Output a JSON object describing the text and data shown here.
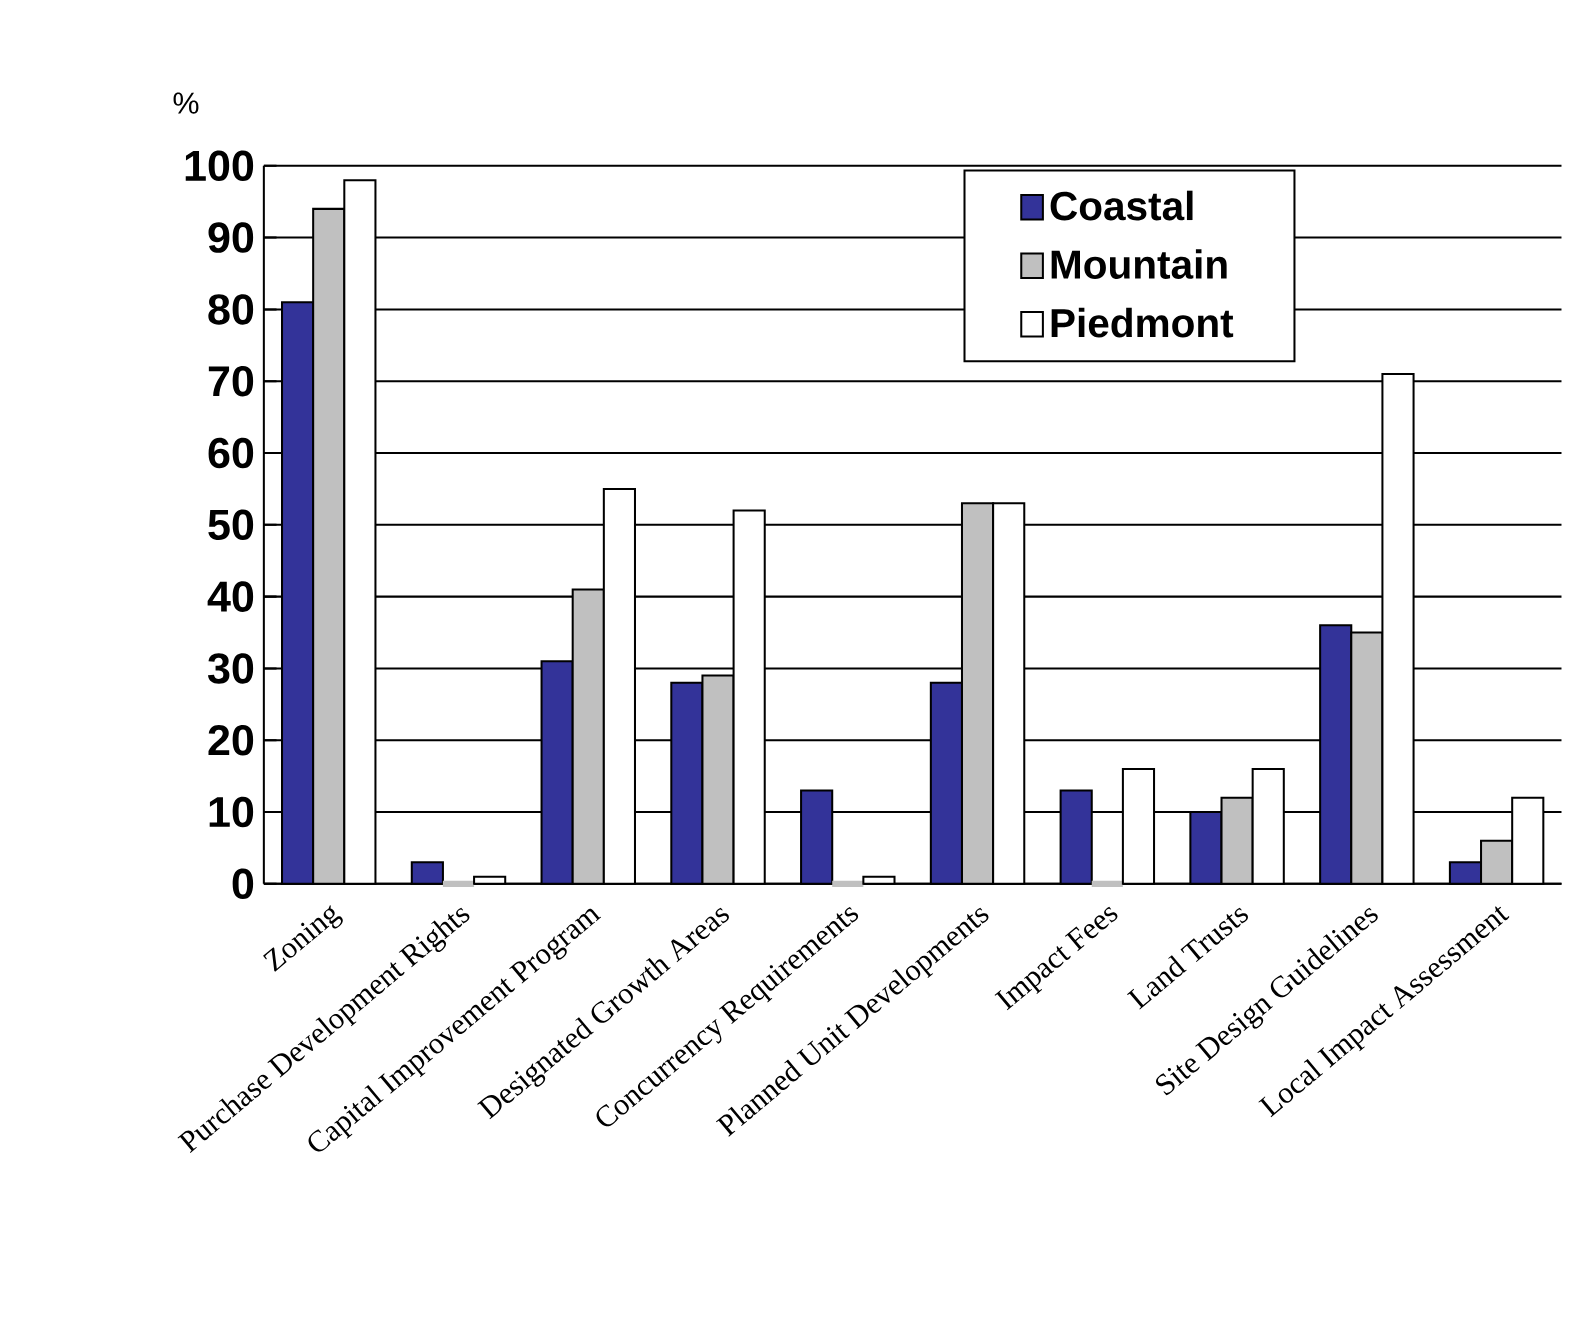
{
  "chart_data": {
    "type": "bar",
    "ylabel": "%",
    "categories": [
      "Zoning",
      "Purchase Development Rights",
      "Capital Improvement Program",
      "Designated Growth Areas",
      "Concurrency Requirements",
      "Planned Unit Developments",
      "Impact Fees",
      "Land Trusts",
      "Site Design Guidelines",
      "Local Impact Assessment"
    ],
    "series": [
      {
        "name": "Coastal",
        "color": "#333399",
        "values": [
          81,
          3,
          31,
          28,
          13,
          28,
          13,
          10,
          36,
          3
        ]
      },
      {
        "name": "Mountain",
        "color": "#c0c0c0",
        "values": [
          94,
          0,
          41,
          29,
          0,
          53,
          0,
          12,
          35,
          6
        ]
      },
      {
        "name": "Piedmont",
        "color": "#ffffff",
        "values": [
          98,
          1,
          55,
          52,
          1,
          53,
          16,
          16,
          71,
          12
        ]
      }
    ],
    "ylim": [
      0,
      100
    ],
    "yticks": [
      0,
      10,
      20,
      30,
      40,
      50,
      60,
      70,
      80,
      90,
      100
    ],
    "grid": "y",
    "legend": "top right"
  }
}
